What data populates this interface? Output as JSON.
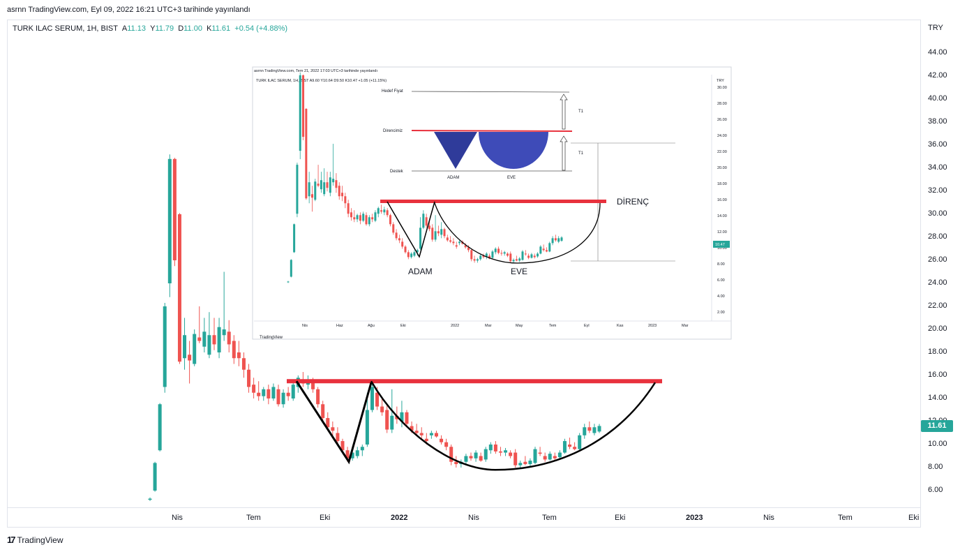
{
  "header": {
    "credit": "asrnn TradingView.com, Eyl 09, 2022 16:21 UTC+3 tarihinde yayınlandı"
  },
  "legend": {
    "symbol": "TURK ILAC SERUM, 1H, BIST",
    "open_label": "A",
    "open": "11.13",
    "high_label": "Y",
    "high": "11.79",
    "low_label": "D",
    "low": "11.00",
    "close_label": "K",
    "close": "11.61",
    "change": "+0.54 (+4.88%)"
  },
  "price_axis": {
    "currency": "TRY",
    "last_price": "11.61"
  },
  "branding": {
    "name": "TradingView"
  },
  "inset": {
    "credit": "asrnn TradingView.com, Tem 21, 2022 17:03 UTC+3 tarihinde yayınlandı",
    "legend": "TURK ILAC SERUM, 1H, BIST  A9.60  Y10.64  D9.50  K10.47  +1.05 (+11.15%)",
    "currency": "TRY",
    "last_price": "10.47",
    "labels": {
      "target": "Hedef Fiyat",
      "resistance_small": "Direncimiz",
      "support": "Destek",
      "adam_small": "ADAM",
      "eve_small": "EVE",
      "t1_a": "T1",
      "t1_b": "T1",
      "resistance": "DİRENÇ",
      "adam": "ADAM",
      "eve": "EVE"
    },
    "y_ticks": [
      "30.00",
      "28.00",
      "26.00",
      "24.00",
      "22.00",
      "20.00",
      "18.00",
      "16.00",
      "14.00",
      "12.00",
      "10.00",
      "8.00",
      "6.00",
      "4.00",
      "2.00"
    ],
    "x_ticks": [
      "Nis",
      "Haz",
      "Ağu",
      "Eki",
      "2022",
      "Mar",
      "May",
      "Tem",
      "Eyl",
      "Kas",
      "2023",
      "Mar"
    ],
    "branding": "TradingView"
  },
  "colors": {
    "up": "#26a69a",
    "down": "#ef5350",
    "resistance_line": "#e8313d",
    "pattern": "#000000",
    "triangle_fill": "#2f3b9a"
  },
  "chart_data": {
    "type": "candlestick",
    "title": "",
    "ylim": [
      5,
      46
    ],
    "y_ticks": [
      44,
      42,
      40,
      38,
      36,
      34,
      32,
      30,
      28,
      26,
      24,
      22,
      20,
      18,
      16,
      14,
      12,
      10,
      8,
      6
    ],
    "x_ticks": [
      {
        "label": "Nis",
        "bold": false
      },
      {
        "label": "Tem",
        "bold": false
      },
      {
        "label": "Eki",
        "bold": false
      },
      {
        "label": "2022",
        "bold": true
      },
      {
        "label": "Nis",
        "bold": false
      },
      {
        "label": "Tem",
        "bold": false
      },
      {
        "label": "Eki",
        "bold": false
      },
      {
        "label": "2023",
        "bold": true
      },
      {
        "label": "Nis",
        "bold": false
      },
      {
        "label": "Tem",
        "bold": false
      },
      {
        "label": "Eki",
        "bold": false
      }
    ],
    "candles": [
      {
        "o": 5.2,
        "h": 5.4,
        "l": 5.1,
        "c": 5.3
      },
      {
        "o": 6.0,
        "h": 8.5,
        "l": 5.9,
        "c": 8.4
      },
      {
        "o": 9.5,
        "h": 13.6,
        "l": 9.4,
        "c": 13.5
      },
      {
        "o": 15.0,
        "h": 22.3,
        "l": 14.5,
        "c": 22.0
      },
      {
        "o": 24.0,
        "h": 35.2,
        "l": 22.8,
        "c": 34.8
      },
      {
        "o": 34.8,
        "h": 34.9,
        "l": 25.5,
        "c": 26.0
      },
      {
        "o": 30.0,
        "h": 30.1,
        "l": 17.0,
        "c": 17.2
      },
      {
        "o": 17.5,
        "h": 21.0,
        "l": 16.5,
        "c": 19.5
      },
      {
        "o": 17.8,
        "h": 19.0,
        "l": 15.3,
        "c": 17.3
      },
      {
        "o": 17.0,
        "h": 20.0,
        "l": 16.8,
        "c": 19.6
      },
      {
        "o": 19.3,
        "h": 22.0,
        "l": 18.8,
        "c": 19.0
      },
      {
        "o": 18.5,
        "h": 21.0,
        "l": 18.0,
        "c": 19.8
      },
      {
        "o": 17.8,
        "h": 21.5,
        "l": 17.5,
        "c": 19.5
      },
      {
        "o": 19.5,
        "h": 21.0,
        "l": 18.2,
        "c": 18.7
      },
      {
        "o": 18.0,
        "h": 21.0,
        "l": 17.5,
        "c": 20.2
      },
      {
        "o": 19.5,
        "h": 25.0,
        "l": 19.0,
        "c": 20.0
      },
      {
        "o": 19.8,
        "h": 20.8,
        "l": 18.0,
        "c": 18.7
      },
      {
        "o": 19.0,
        "h": 19.5,
        "l": 17.0,
        "c": 17.5
      },
      {
        "o": 18.0,
        "h": 19.0,
        "l": 16.8,
        "c": 17.5
      },
      {
        "o": 17.5,
        "h": 18.0,
        "l": 15.8,
        "c": 16.5
      },
      {
        "o": 16.5,
        "h": 17.0,
        "l": 14.5,
        "c": 15.0
      },
      {
        "o": 15.2,
        "h": 15.8,
        "l": 14.0,
        "c": 14.5
      },
      {
        "o": 14.5,
        "h": 15.5,
        "l": 13.8,
        "c": 14.2
      },
      {
        "o": 14.2,
        "h": 15.0,
        "l": 13.8,
        "c": 14.8
      },
      {
        "o": 14.8,
        "h": 15.2,
        "l": 13.5,
        "c": 14.0
      },
      {
        "o": 14.0,
        "h": 15.3,
        "l": 13.8,
        "c": 15.0
      },
      {
        "o": 14.8,
        "h": 15.2,
        "l": 13.3,
        "c": 13.5
      },
      {
        "o": 13.5,
        "h": 14.8,
        "l": 13.2,
        "c": 14.5
      },
      {
        "o": 14.5,
        "h": 15.0,
        "l": 13.8,
        "c": 14.2
      },
      {
        "o": 14.0,
        "h": 15.5,
        "l": 13.8,
        "c": 15.2
      },
      {
        "o": 15.0,
        "h": 16.0,
        "l": 14.5,
        "c": 15.8
      },
      {
        "o": 15.5,
        "h": 16.3,
        "l": 15.0,
        "c": 15.3
      },
      {
        "o": 15.2,
        "h": 16.0,
        "l": 14.8,
        "c": 15.6
      },
      {
        "o": 15.5,
        "h": 15.8,
        "l": 14.5,
        "c": 14.8
      },
      {
        "o": 14.8,
        "h": 15.0,
        "l": 13.2,
        "c": 13.5
      },
      {
        "o": 13.5,
        "h": 13.8,
        "l": 12.0,
        "c": 12.3
      },
      {
        "o": 12.3,
        "h": 12.8,
        "l": 11.2,
        "c": 11.5
      },
      {
        "o": 11.5,
        "h": 12.0,
        "l": 10.8,
        "c": 11.2
      },
      {
        "o": 11.0,
        "h": 11.5,
        "l": 10.0,
        "c": 10.3
      },
      {
        "o": 10.3,
        "h": 10.5,
        "l": 9.3,
        "c": 9.5
      },
      {
        "o": 9.5,
        "h": 9.8,
        "l": 8.5,
        "c": 8.8
      },
      {
        "o": 8.8,
        "h": 9.5,
        "l": 8.6,
        "c": 9.3
      },
      {
        "o": 9.0,
        "h": 9.8,
        "l": 8.8,
        "c": 9.5
      },
      {
        "o": 9.5,
        "h": 10.0,
        "l": 9.0,
        "c": 9.8
      },
      {
        "o": 10.0,
        "h": 14.5,
        "l": 9.8,
        "c": 13.0
      },
      {
        "o": 13.0,
        "h": 15.5,
        "l": 12.8,
        "c": 15.0
      },
      {
        "o": 14.5,
        "h": 15.0,
        "l": 13.0,
        "c": 13.3
      },
      {
        "o": 13.3,
        "h": 14.0,
        "l": 12.5,
        "c": 12.8
      },
      {
        "o": 13.0,
        "h": 13.5,
        "l": 11.0,
        "c": 11.3
      },
      {
        "o": 11.3,
        "h": 14.8,
        "l": 11.0,
        "c": 12.5
      },
      {
        "o": 12.5,
        "h": 13.3,
        "l": 11.8,
        "c": 12.2
      },
      {
        "o": 12.0,
        "h": 13.8,
        "l": 11.5,
        "c": 12.8
      },
      {
        "o": 12.8,
        "h": 13.0,
        "l": 11.5,
        "c": 11.8
      },
      {
        "o": 11.6,
        "h": 12.0,
        "l": 11.0,
        "c": 11.2
      },
      {
        "o": 11.2,
        "h": 11.8,
        "l": 10.8,
        "c": 11.0
      },
      {
        "o": 11.0,
        "h": 11.5,
        "l": 10.5,
        "c": 10.8
      },
      {
        "o": 10.5,
        "h": 11.0,
        "l": 10.0,
        "c": 10.3
      },
      {
        "o": 10.8,
        "h": 11.2,
        "l": 10.5,
        "c": 11.0
      },
      {
        "o": 11.0,
        "h": 11.2,
        "l": 10.6,
        "c": 10.7
      },
      {
        "o": 10.5,
        "h": 10.8,
        "l": 10.0,
        "c": 10.2
      },
      {
        "o": 10.2,
        "h": 10.5,
        "l": 9.5,
        "c": 9.8
      },
      {
        "o": 9.8,
        "h": 10.0,
        "l": 8.2,
        "c": 8.5
      },
      {
        "o": 8.5,
        "h": 9.0,
        "l": 8.0,
        "c": 8.3
      },
      {
        "o": 8.3,
        "h": 8.7,
        "l": 8.0,
        "c": 8.5
      },
      {
        "o": 8.5,
        "h": 9.2,
        "l": 8.3,
        "c": 9.0
      },
      {
        "o": 9.0,
        "h": 9.3,
        "l": 8.6,
        "c": 8.8
      },
      {
        "o": 8.8,
        "h": 9.5,
        "l": 8.5,
        "c": 9.3
      },
      {
        "o": 9.0,
        "h": 9.3,
        "l": 8.5,
        "c": 8.6
      },
      {
        "o": 8.7,
        "h": 9.8,
        "l": 8.5,
        "c": 9.6
      },
      {
        "o": 9.5,
        "h": 10.2,
        "l": 9.2,
        "c": 10.0
      },
      {
        "o": 10.0,
        "h": 10.3,
        "l": 9.2,
        "c": 9.4
      },
      {
        "o": 9.4,
        "h": 9.8,
        "l": 9.0,
        "c": 9.3
      },
      {
        "o": 9.3,
        "h": 9.7,
        "l": 9.0,
        "c": 9.5
      },
      {
        "o": 9.3,
        "h": 9.5,
        "l": 8.8,
        "c": 9.0
      },
      {
        "o": 9.3,
        "h": 9.6,
        "l": 8.0,
        "c": 8.2
      },
      {
        "o": 8.2,
        "h": 8.6,
        "l": 8.0,
        "c": 8.4
      },
      {
        "o": 8.5,
        "h": 9.0,
        "l": 8.2,
        "c": 8.3
      },
      {
        "o": 8.3,
        "h": 8.8,
        "l": 8.1,
        "c": 8.6
      },
      {
        "o": 8.4,
        "h": 9.8,
        "l": 8.3,
        "c": 9.6
      },
      {
        "o": 9.3,
        "h": 9.8,
        "l": 9.0,
        "c": 9.2
      },
      {
        "o": 9.0,
        "h": 9.3,
        "l": 8.5,
        "c": 8.7
      },
      {
        "o": 8.7,
        "h": 9.4,
        "l": 8.6,
        "c": 9.2
      },
      {
        "o": 9.0,
        "h": 9.3,
        "l": 8.6,
        "c": 8.8
      },
      {
        "o": 8.9,
        "h": 9.5,
        "l": 8.7,
        "c": 9.3
      },
      {
        "o": 9.3,
        "h": 10.5,
        "l": 9.2,
        "c": 10.3
      },
      {
        "o": 10.0,
        "h": 10.6,
        "l": 9.6,
        "c": 9.8
      },
      {
        "o": 9.8,
        "h": 10.2,
        "l": 9.5,
        "c": 9.6
      },
      {
        "o": 9.6,
        "h": 11.0,
        "l": 9.5,
        "c": 10.8
      },
      {
        "o": 10.8,
        "h": 11.8,
        "l": 10.5,
        "c": 11.5
      },
      {
        "o": 11.5,
        "h": 12.0,
        "l": 11.0,
        "c": 11.2
      },
      {
        "o": 11.0,
        "h": 11.8,
        "l": 10.8,
        "c": 11.5
      },
      {
        "o": 11.13,
        "h": 11.79,
        "l": 11.0,
        "c": 11.61
      }
    ],
    "resistance_level": 15.5,
    "adam_low": 8.5,
    "eve_low": 7.8
  }
}
